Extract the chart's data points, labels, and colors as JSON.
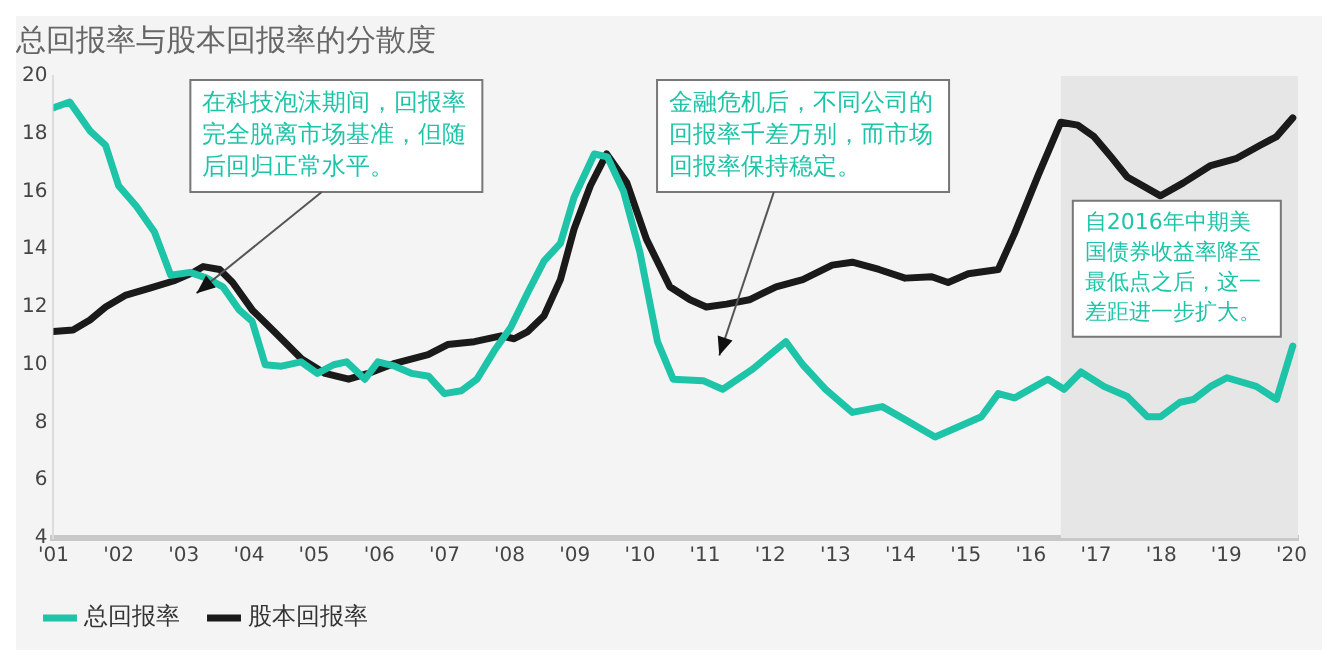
{
  "chart_data": {
    "type": "line",
    "title": "总回报率与股本回报率的分散度",
    "xlim": [
      2001,
      2020.1
    ],
    "xticks": [
      {
        "value": 2001,
        "label": "'01"
      },
      {
        "value": 2002,
        "label": "'02"
      },
      {
        "value": 2003,
        "label": "'03"
      },
      {
        "value": 2004,
        "label": "'04"
      },
      {
        "value": 2005,
        "label": "'05"
      },
      {
        "value": 2006,
        "label": "'06"
      },
      {
        "value": 2007,
        "label": "'07"
      },
      {
        "value": 2008,
        "label": "'08"
      },
      {
        "value": 2009,
        "label": "'09"
      },
      {
        "value": 2010,
        "label": "'10"
      },
      {
        "value": 2011,
        "label": "'11"
      },
      {
        "value": 2012,
        "label": "'12"
      },
      {
        "value": 2013,
        "label": "'13"
      },
      {
        "value": 2014,
        "label": "'14"
      },
      {
        "value": 2015,
        "label": "'15"
      },
      {
        "value": 2016,
        "label": "'16"
      },
      {
        "value": 2017,
        "label": "'17"
      },
      {
        "value": 2018,
        "label": "'18"
      },
      {
        "value": 2019,
        "label": "'19"
      },
      {
        "value": 2020,
        "label": "'20"
      }
    ],
    "ylim": [
      4,
      20
    ],
    "yticks": [
      4,
      6,
      8,
      10,
      12,
      14,
      16,
      18,
      20
    ],
    "grid": false,
    "legend": "bottom left",
    "marker": "none",
    "line_style": "solid",
    "series": [
      {
        "name": "总回报率",
        "color": "#1dc4a8",
        "x": [
          2001.0,
          2001.25,
          2001.56,
          2001.8,
          2002.0,
          2002.27,
          2002.55,
          2002.8,
          2003.1,
          2003.35,
          2003.6,
          2003.85,
          2004.05,
          2004.25,
          2004.5,
          2004.8,
          2005.05,
          2005.3,
          2005.5,
          2005.78,
          2005.98,
          2006.24,
          2006.5,
          2006.76,
          2007.0,
          2007.26,
          2007.5,
          2007.77,
          2008.02,
          2008.28,
          2008.53,
          2008.78,
          2008.99,
          2009.3,
          2009.5,
          2009.75,
          2010.0,
          2010.27,
          2010.51,
          2010.97,
          2011.27,
          2011.73,
          2012.24,
          2012.5,
          2012.85,
          2013.26,
          2013.72,
          2014.07,
          2014.53,
          2014.89,
          2015.24,
          2015.5,
          2015.75,
          2016.26,
          2016.51,
          2016.77,
          2017.12,
          2017.48,
          2017.79,
          2017.99,
          2018.29,
          2018.5,
          2018.76,
          2019.01,
          2019.46,
          2019.77,
          2020.02
        ],
        "values": [
          18.9,
          19.1,
          18.1,
          17.6,
          16.2,
          15.5,
          14.6,
          13.1,
          13.2,
          13.0,
          12.7,
          11.9,
          11.5,
          10.0,
          9.95,
          10.1,
          9.7,
          10.0,
          10.1,
          9.5,
          10.1,
          9.95,
          9.7,
          9.6,
          9.0,
          9.1,
          9.5,
          10.5,
          11.3,
          12.5,
          13.6,
          14.2,
          15.8,
          17.3,
          17.2,
          16.0,
          13.9,
          10.8,
          9.5,
          9.45,
          9.15,
          9.85,
          10.8,
          10.0,
          9.15,
          8.35,
          8.55,
          8.1,
          7.5,
          7.85,
          8.2,
          9.0,
          8.85,
          9.5,
          9.15,
          9.75,
          9.25,
          8.9,
          8.2,
          8.2,
          8.7,
          8.8,
          9.25,
          9.55,
          9.25,
          8.8,
          10.65
        ]
      },
      {
        "name": "股本回报率",
        "color": "#1a1a1a",
        "x": [
          2001.0,
          2001.3,
          2001.56,
          2001.8,
          2002.1,
          2002.48,
          2002.84,
          2003.15,
          2003.3,
          2003.55,
          2003.75,
          2004.05,
          2004.41,
          2004.81,
          2005.17,
          2005.53,
          2005.83,
          2006.24,
          2006.75,
          2007.05,
          2007.46,
          2007.87,
          2008.07,
          2008.28,
          2008.53,
          2008.78,
          2008.99,
          2009.24,
          2009.49,
          2009.8,
          2010.1,
          2010.46,
          2010.77,
          2011.02,
          2011.33,
          2011.68,
          2012.09,
          2012.5,
          2012.95,
          2013.26,
          2013.67,
          2014.07,
          2014.48,
          2014.73,
          2015.04,
          2015.5,
          2015.75,
          2016.11,
          2016.46,
          2016.72,
          2016.97,
          2017.23,
          2017.48,
          2017.99,
          2018.34,
          2018.76,
          2019.16,
          2019.52,
          2019.77,
          2020.02
        ],
        "values": [
          11.15,
          11.2,
          11.55,
          12.0,
          12.4,
          12.65,
          12.9,
          13.2,
          13.4,
          13.3,
          12.85,
          11.9,
          11.1,
          10.2,
          9.7,
          9.5,
          9.7,
          10.05,
          10.35,
          10.7,
          10.8,
          11.0,
          10.9,
          11.15,
          11.7,
          12.95,
          14.7,
          16.2,
          17.3,
          16.3,
          14.35,
          12.7,
          12.25,
          12.0,
          12.1,
          12.25,
          12.7,
          12.95,
          13.45,
          13.55,
          13.3,
          13.0,
          13.05,
          12.85,
          13.15,
          13.3,
          14.55,
          16.55,
          18.4,
          18.3,
          17.9,
          17.2,
          16.5,
          15.85,
          16.3,
          16.9,
          17.15,
          17.6,
          17.9,
          18.55
        ]
      }
    ],
    "bands": [
      {
        "axis": "x",
        "from": 2016.46,
        "to": 2020.1,
        "color": "#e6e6e6",
        "label": "自2016年中期美国债券收益率降至最低点之后，这一差距进一步扩大。"
      }
    ],
    "annotations": [
      "在科技泡沫期间，回报率完全脱离市场基准，但随后回归正常水平。",
      "金融危机后，不同公司的回报率千差万别，而市场回报率保持稳定。"
    ]
  }
}
